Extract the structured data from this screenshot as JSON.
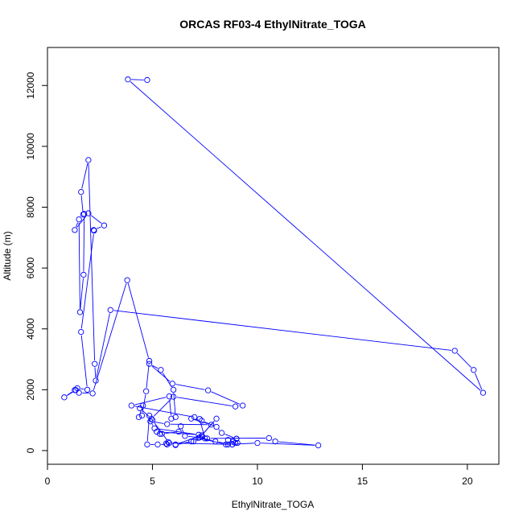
{
  "chart_data": {
    "type": "line",
    "title": "ORCAS RF03-4 EthylNitrate_TOGA",
    "xlabel": "EthylNitrate_TOGA",
    "ylabel": "Altitude (m)",
    "xlim": [
      0,
      21.5
    ],
    "ylim": [
      -450,
      13250
    ],
    "xticks": [
      0,
      5,
      10,
      15,
      20
    ],
    "xtick_labels": [
      "0",
      "5",
      "10",
      "15",
      "20"
    ],
    "yticks": [
      0,
      2000,
      4000,
      6000,
      8000,
      10000,
      12000
    ],
    "ytick_labels": [
      "0",
      "2000",
      "4000",
      "6000",
      "8000",
      "10000",
      "12000"
    ],
    "grid": false,
    "legend": "none",
    "series_color": "#0000ff",
    "series": [
      {
        "x": [
          4.75,
          3.83,
          20.75,
          20.3,
          19.4,
          3.0,
          2.3,
          2.25,
          1.95,
          1.6,
          1.7,
          1.75,
          1.72,
          1.55,
          1.5,
          1.3,
          1.95,
          2.7,
          2.2,
          2.22,
          1.6,
          1.9,
          1.42,
          1.35,
          0.8,
          1.3,
          1.5,
          2.15,
          3.8,
          4.85,
          4.7,
          4.5,
          4.35,
          4.55,
          4.4,
          4.95,
          6.0,
          8.95,
          9.3,
          7.65,
          5.95,
          4.85,
          5.4,
          6.0,
          6.1,
          5.9,
          5.8,
          4.0,
          7.0,
          7.25,
          7.5,
          6.95,
          6.1,
          7.35,
          8.05,
          7.25,
          8.0,
          8.8,
          9.05,
          8.6,
          9.0,
          8.95,
          8.8,
          5.8,
          5.0,
          4.85,
          4.75,
          5.25,
          5.7,
          5.65,
          5.75,
          6.1,
          6.85,
          7.35,
          7.2,
          8.5,
          8.85,
          8.6,
          10.0,
          12.9,
          10.85,
          10.55,
          7.6,
          6.55,
          6.35,
          6.25,
          5.45,
          5.35,
          5.2,
          7.2,
          5.1,
          4.9,
          5.7,
          7.8,
          6.85,
          7.35,
          8.05,
          8.3,
          9.0
        ],
        "y": [
          12180,
          12200,
          1900,
          2650,
          3280,
          4620,
          2300,
          2850,
          9550,
          8500,
          7760,
          7780,
          5780,
          4550,
          7600,
          7250,
          7800,
          7400,
          7250,
          7230,
          3900,
          2000,
          2050,
          1990,
          1750,
          1990,
          1900,
          1880,
          5600,
          2950,
          1950,
          1150,
          1100,
          1480,
          1390,
          1050,
          1770,
          1450,
          1480,
          1980,
          2200,
          2850,
          2650,
          2000,
          1100,
          1050,
          1780,
          1480,
          1100,
          1040,
          400,
          300,
          200,
          500,
          1050,
          430,
          300,
          200,
          250,
          350,
          390,
          250,
          200,
          250,
          1000,
          1150,
          200,
          200,
          200,
          230,
          280,
          180,
          300,
          450,
          420,
          200,
          300,
          200,
          250,
          170,
          300,
          410,
          400,
          480,
          800,
          620,
          550,
          550,
          620,
          520,
          730,
          960,
          870,
          850,
          1050,
          980,
          780,
          580,
          390
        ]
      }
    ]
  }
}
